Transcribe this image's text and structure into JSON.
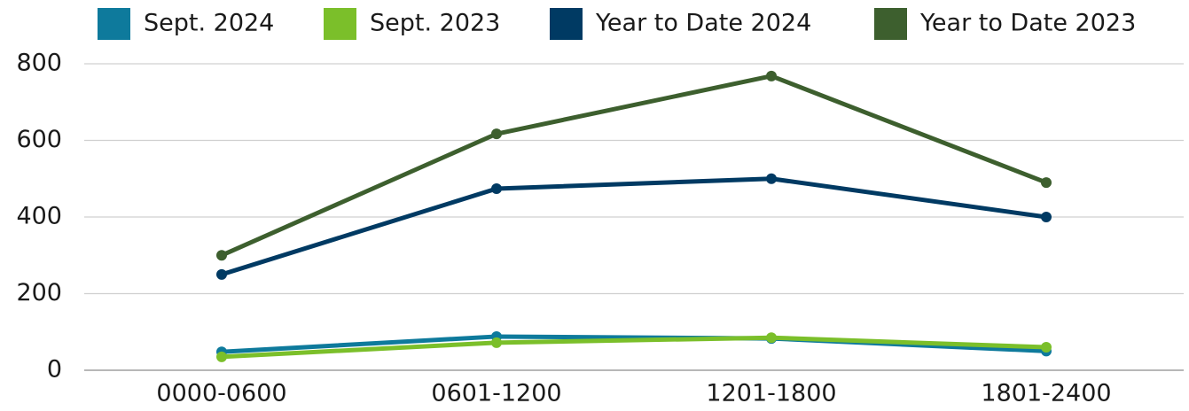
{
  "chart_data": {
    "type": "line",
    "categories": [
      "0000-0600",
      "0601-1200",
      "1201-1800",
      "1801-2400"
    ],
    "series": [
      {
        "name": "Sept. 2024",
        "color": "#0e7a9c",
        "values": [
          48,
          88,
          83,
          50
        ]
      },
      {
        "name": "Sept. 2023",
        "color": "#7bbf2a",
        "values": [
          35,
          72,
          85,
          60
        ]
      },
      {
        "name": "Year to Date 2024",
        "color": "#003a63",
        "values": [
          250,
          474,
          500,
          400
        ]
      },
      {
        "name": "Year to Date 2023",
        "color": "#3d5f2e",
        "values": [
          300,
          617,
          768,
          490
        ]
      }
    ],
    "ylim": [
      0,
      800
    ],
    "yticks": [
      0,
      200,
      400,
      600,
      800
    ],
    "grid": true,
    "legend": "top"
  }
}
